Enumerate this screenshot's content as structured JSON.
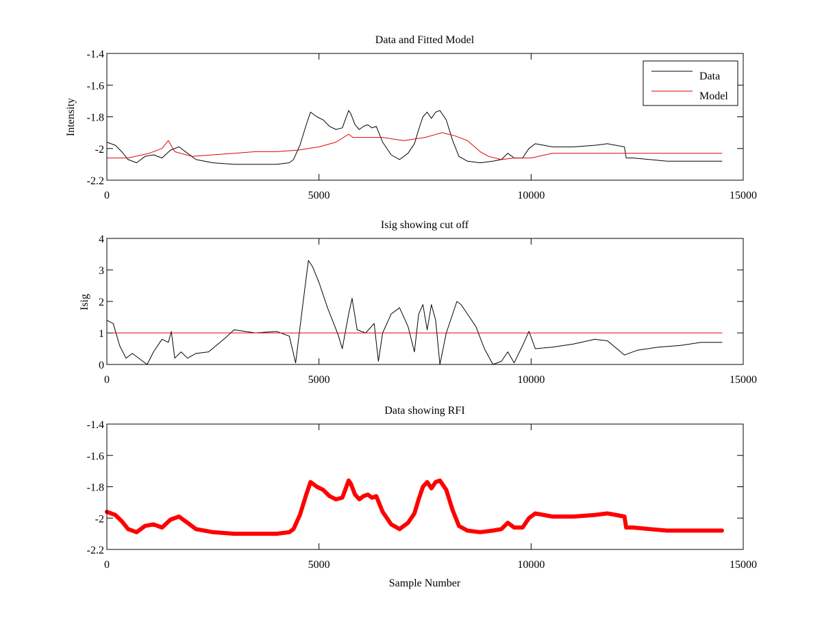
{
  "chart_data": [
    {
      "type": "line",
      "title": "Data and Fitted Model",
      "xlabel": "",
      "ylabel": "Intensity",
      "xlim": [
        0,
        15000
      ],
      "ylim": [
        -2.2,
        -1.4
      ],
      "xticks": [
        0,
        5000,
        10000,
        15000
      ],
      "yticks": [
        -1.4,
        -1.6,
        -1.8,
        -2,
        -2.2
      ],
      "grid": false,
      "legend": "top-right",
      "series": [
        {
          "name": "Data",
          "color": "#000000",
          "x": [
            0,
            200,
            350,
            500,
            700,
            900,
            1100,
            1300,
            1500,
            1700,
            1900,
            2100,
            2500,
            3000,
            3500,
            4000,
            4300,
            4400,
            4550,
            4700,
            4800,
            4950,
            5100,
            5250,
            5400,
            5550,
            5700,
            5750,
            5850,
            5950,
            6050,
            6150,
            6250,
            6350,
            6500,
            6700,
            6900,
            7100,
            7250,
            7350,
            7450,
            7550,
            7650,
            7750,
            7850,
            8000,
            8150,
            8300,
            8500,
            8800,
            9100,
            9300,
            9450,
            9600,
            9800,
            9950,
            10100,
            10500,
            11000,
            11500,
            11800,
            12200,
            12240,
            12400,
            12800,
            13200,
            13600,
            14000,
            14500
          ],
          "y": [
            -1.96,
            -1.98,
            -2.02,
            -2.07,
            -2.09,
            -2.05,
            -2.04,
            -2.06,
            -2.01,
            -1.99,
            -2.03,
            -2.07,
            -2.09,
            -2.1,
            -2.1,
            -2.1,
            -2.09,
            -2.07,
            -1.98,
            -1.85,
            -1.77,
            -1.8,
            -1.82,
            -1.86,
            -1.88,
            -1.87,
            -1.76,
            -1.78,
            -1.85,
            -1.88,
            -1.86,
            -1.85,
            -1.87,
            -1.86,
            -1.96,
            -2.04,
            -2.07,
            -2.03,
            -1.97,
            -1.88,
            -1.8,
            -1.77,
            -1.81,
            -1.77,
            -1.76,
            -1.82,
            -1.95,
            -2.05,
            -2.08,
            -2.09,
            -2.08,
            -2.07,
            -2.03,
            -2.06,
            -2.06,
            -2.0,
            -1.97,
            -1.99,
            -1.99,
            -1.98,
            -1.97,
            -1.99,
            -2.06,
            -2.06,
            -2.07,
            -2.08,
            -2.08,
            -2.08,
            -2.08
          ]
        },
        {
          "name": "Model",
          "color": "#e00000",
          "x": [
            0,
            500,
            1000,
            1300,
            1450,
            1600,
            2000,
            2500,
            3000,
            3500,
            4000,
            4500,
            5000,
            5400,
            5700,
            5800,
            6000,
            6500,
            7000,
            7500,
            7900,
            8200,
            8500,
            8800,
            9000,
            9300,
            9600,
            10000,
            10500,
            11000,
            12000,
            13000,
            14500
          ],
          "y": [
            -2.06,
            -2.06,
            -2.03,
            -2.0,
            -1.95,
            -2.02,
            -2.05,
            -2.04,
            -2.03,
            -2.02,
            -2.02,
            -2.01,
            -1.99,
            -1.96,
            -1.91,
            -1.93,
            -1.93,
            -1.93,
            -1.95,
            -1.93,
            -1.9,
            -1.92,
            -1.95,
            -2.02,
            -2.05,
            -2.07,
            -2.06,
            -2.06,
            -2.03,
            -2.03,
            -2.03,
            -2.03,
            -2.03
          ]
        }
      ]
    },
    {
      "type": "line",
      "title": "Isig showing cut off",
      "xlabel": "",
      "ylabel": "Isig",
      "xlim": [
        0,
        15000
      ],
      "ylim": [
        0,
        4
      ],
      "xticks": [
        0,
        5000,
        10000,
        15000
      ],
      "yticks": [
        0,
        1,
        2,
        3,
        4
      ],
      "grid": false,
      "series": [
        {
          "color": "#000000",
          "x": [
            0,
            150,
            300,
            450,
            600,
            800,
            950,
            1100,
            1300,
            1450,
            1520,
            1600,
            1750,
            1900,
            2100,
            2400,
            2800,
            3000,
            3500,
            4000,
            4300,
            4450,
            4600,
            4750,
            4850,
            5000,
            5200,
            5450,
            5550,
            5700,
            5780,
            5900,
            6100,
            6300,
            6400,
            6500,
            6700,
            6900,
            7100,
            7250,
            7350,
            7450,
            7550,
            7650,
            7750,
            7850,
            8000,
            8250,
            8350,
            8500,
            8700,
            8900,
            9100,
            9300,
            9450,
            9600,
            9800,
            9950,
            10100,
            10500,
            11000,
            11500,
            11800,
            12200,
            12500,
            13000,
            13500,
            14000,
            14500
          ],
          "y": [
            1.4,
            1.3,
            0.6,
            0.2,
            0.35,
            0.15,
            0.0,
            0.4,
            0.8,
            0.7,
            1.05,
            0.2,
            0.4,
            0.2,
            0.35,
            0.4,
            0.85,
            1.1,
            1.0,
            1.05,
            0.9,
            0.05,
            1.7,
            3.3,
            3.1,
            2.6,
            1.8,
            0.95,
            0.5,
            1.6,
            2.1,
            1.1,
            1.0,
            1.3,
            0.1,
            1.0,
            1.6,
            1.8,
            1.2,
            0.4,
            1.6,
            1.9,
            1.1,
            1.9,
            1.4,
            0.0,
            1.0,
            2.0,
            1.9,
            1.6,
            1.2,
            0.5,
            0.0,
            0.1,
            0.4,
            0.05,
            0.6,
            1.05,
            0.5,
            0.55,
            0.65,
            0.8,
            0.75,
            0.3,
            0.45,
            0.55,
            0.6,
            0.7,
            0.7
          ]
        },
        {
          "color": "#e00000",
          "x": [
            0,
            14500
          ],
          "y": [
            1,
            1
          ]
        }
      ]
    },
    {
      "type": "line",
      "title": "Data showing RFI",
      "xlabel": "Sample Number",
      "ylabel": "",
      "xlim": [
        0,
        15000
      ],
      "ylim": [
        -2.2,
        -1.4
      ],
      "xticks": [
        0,
        5000,
        10000,
        15000
      ],
      "yticks": [
        -1.4,
        -1.6,
        -1.8,
        -2,
        -2.2
      ],
      "grid": false,
      "series": [
        {
          "color": "#ff0000",
          "x": [
            0,
            200,
            350,
            500,
            700,
            900,
            1100,
            1300,
            1500,
            1700,
            1900,
            2100,
            2500,
            3000,
            3500,
            4000,
            4300,
            4400,
            4550,
            4700,
            4800,
            4950,
            5100,
            5250,
            5400,
            5550,
            5700,
            5750,
            5850,
            5950,
            6050,
            6150,
            6250,
            6350,
            6500,
            6700,
            6900,
            7100,
            7250,
            7350,
            7450,
            7550,
            7650,
            7750,
            7850,
            8000,
            8150,
            8300,
            8500,
            8800,
            9100,
            9300,
            9450,
            9600,
            9800,
            9950,
            10100,
            10500,
            11000,
            11500,
            11800,
            12200,
            12240,
            12400,
            12800,
            13200,
            13600,
            14000,
            14500
          ],
          "y": [
            -1.96,
            -1.98,
            -2.02,
            -2.07,
            -2.09,
            -2.05,
            -2.04,
            -2.06,
            -2.01,
            -1.99,
            -2.03,
            -2.07,
            -2.09,
            -2.1,
            -2.1,
            -2.1,
            -2.09,
            -2.07,
            -1.98,
            -1.85,
            -1.77,
            -1.8,
            -1.82,
            -1.86,
            -1.88,
            -1.87,
            -1.76,
            -1.78,
            -1.85,
            -1.88,
            -1.86,
            -1.85,
            -1.87,
            -1.86,
            -1.96,
            -2.04,
            -2.07,
            -2.03,
            -1.97,
            -1.88,
            -1.8,
            -1.77,
            -1.81,
            -1.77,
            -1.76,
            -1.82,
            -1.95,
            -2.05,
            -2.08,
            -2.09,
            -2.08,
            -2.07,
            -2.03,
            -2.06,
            -2.06,
            -2.0,
            -1.97,
            -1.99,
            -1.99,
            -1.98,
            -1.97,
            -1.99,
            -2.06,
            -2.06,
            -2.07,
            -2.08,
            -2.08,
            -2.08,
            -2.08
          ]
        }
      ]
    }
  ]
}
